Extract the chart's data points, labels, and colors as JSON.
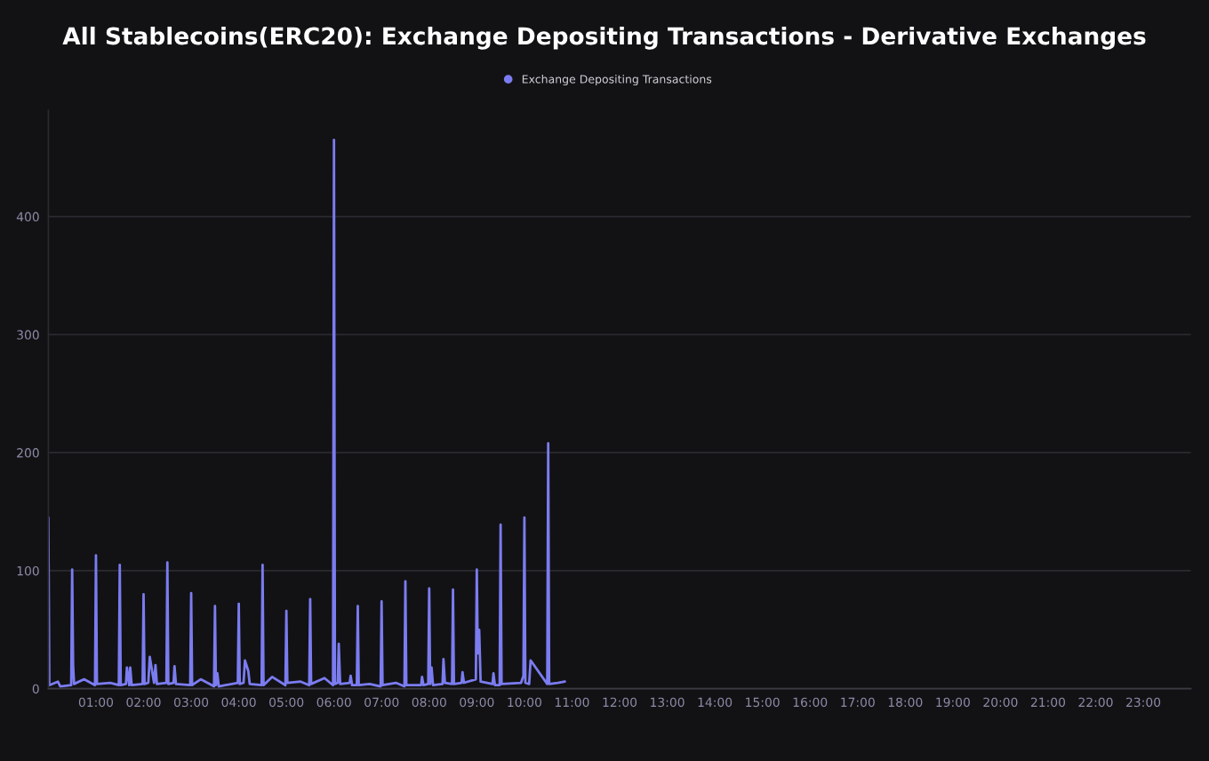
{
  "chart_data": {
    "type": "line",
    "title": "All Stablecoins(ERC20): Exchange Depositing Transactions - Derivative Exchanges",
    "series": [
      {
        "name": "Exchange Depositing Transactions",
        "color": "#7b7cf0",
        "x": [
          0,
          0.02,
          0.2,
          0.25,
          0.48,
          0.5,
          0.52,
          0.54,
          0.75,
          0.98,
          1.0,
          1.02,
          1.3,
          1.48,
          1.5,
          1.52,
          1.63,
          1.65,
          1.7,
          1.72,
          1.75,
          1.98,
          2.0,
          2.02,
          2.1,
          2.13,
          2.22,
          2.25,
          2.28,
          2.48,
          2.5,
          2.52,
          2.63,
          2.65,
          2.68,
          2.98,
          3.0,
          3.02,
          3.2,
          3.48,
          3.5,
          3.52,
          3.55,
          3.58,
          3.98,
          4.0,
          4.02,
          4.1,
          4.13,
          4.2,
          4.23,
          4.48,
          4.5,
          4.52,
          4.7,
          4.98,
          5.0,
          5.02,
          5.3,
          5.48,
          5.5,
          5.52,
          5.8,
          5.98,
          6.0,
          6.02,
          6.08,
          6.1,
          6.13,
          6.33,
          6.35,
          6.38,
          6.48,
          6.5,
          6.52,
          6.75,
          6.98,
          7.0,
          7.02,
          7.3,
          7.48,
          7.5,
          7.52,
          7.83,
          7.85,
          7.88,
          7.98,
          8.0,
          8.02,
          8.05,
          8.08,
          8.28,
          8.3,
          8.33,
          8.48,
          8.5,
          8.52,
          8.68,
          8.7,
          8.73,
          8.98,
          9.0,
          9.02,
          9.05,
          9.08,
          9.33,
          9.35,
          9.38,
          9.48,
          9.5,
          9.52,
          9.93,
          9.98,
          10.0,
          10.02,
          10.1,
          10.13,
          10.48,
          10.5,
          10.52,
          10.7,
          10.85
        ],
        "values": [
          145,
          3,
          6,
          2,
          3,
          101,
          20,
          4,
          8,
          3,
          113,
          4,
          5,
          3,
          105,
          3,
          4,
          18,
          3,
          18,
          3,
          4,
          80,
          4,
          5,
          27,
          5,
          20,
          4,
          5,
          107,
          4,
          5,
          19,
          4,
          3,
          81,
          3,
          8,
          2,
          70,
          3,
          13,
          2,
          5,
          72,
          4,
          5,
          24,
          15,
          4,
          3,
          105,
          3,
          10,
          3,
          66,
          5,
          6,
          3,
          76,
          4,
          9,
          3,
          465,
          4,
          5,
          38,
          4,
          5,
          11,
          3,
          3,
          70,
          3,
          4,
          2,
          74,
          3,
          5,
          2,
          91,
          3,
          3,
          10,
          3,
          4,
          85,
          4,
          18,
          3,
          4,
          25,
          5,
          4,
          84,
          4,
          5,
          14,
          5,
          8,
          101,
          30,
          50,
          6,
          4,
          13,
          3,
          3,
          139,
          4,
          5,
          11,
          145,
          5,
          4,
          24,
          4,
          208,
          4,
          5,
          6
        ]
      }
    ],
    "xlim": [
      0,
      24
    ],
    "xticks": [
      {
        "value": 1,
        "label": "01:00"
      },
      {
        "value": 2,
        "label": "02:00"
      },
      {
        "value": 3,
        "label": "03:00"
      },
      {
        "value": 4,
        "label": "04:00"
      },
      {
        "value": 5,
        "label": "05:00"
      },
      {
        "value": 6,
        "label": "06:00"
      },
      {
        "value": 7,
        "label": "07:00"
      },
      {
        "value": 8,
        "label": "08:00"
      },
      {
        "value": 9,
        "label": "09:00"
      },
      {
        "value": 10,
        "label": "10:00"
      },
      {
        "value": 11,
        "label": "11:00"
      },
      {
        "value": 12,
        "label": "12:00"
      },
      {
        "value": 13,
        "label": "13:00"
      },
      {
        "value": 14,
        "label": "14:00"
      },
      {
        "value": 15,
        "label": "15:00"
      },
      {
        "value": 16,
        "label": "16:00"
      },
      {
        "value": 17,
        "label": "17:00"
      },
      {
        "value": 18,
        "label": "18:00"
      },
      {
        "value": 19,
        "label": "19:00"
      },
      {
        "value": 20,
        "label": "20:00"
      },
      {
        "value": 21,
        "label": "21:00"
      },
      {
        "value": 22,
        "label": "22:00"
      },
      {
        "value": 23,
        "label": "23:00"
      }
    ],
    "ylim": [
      0,
      490
    ],
    "yticks": [
      0,
      100,
      200,
      300,
      400
    ],
    "grid": "y",
    "legend": "top",
    "marker": "none",
    "line_style": "solid"
  }
}
